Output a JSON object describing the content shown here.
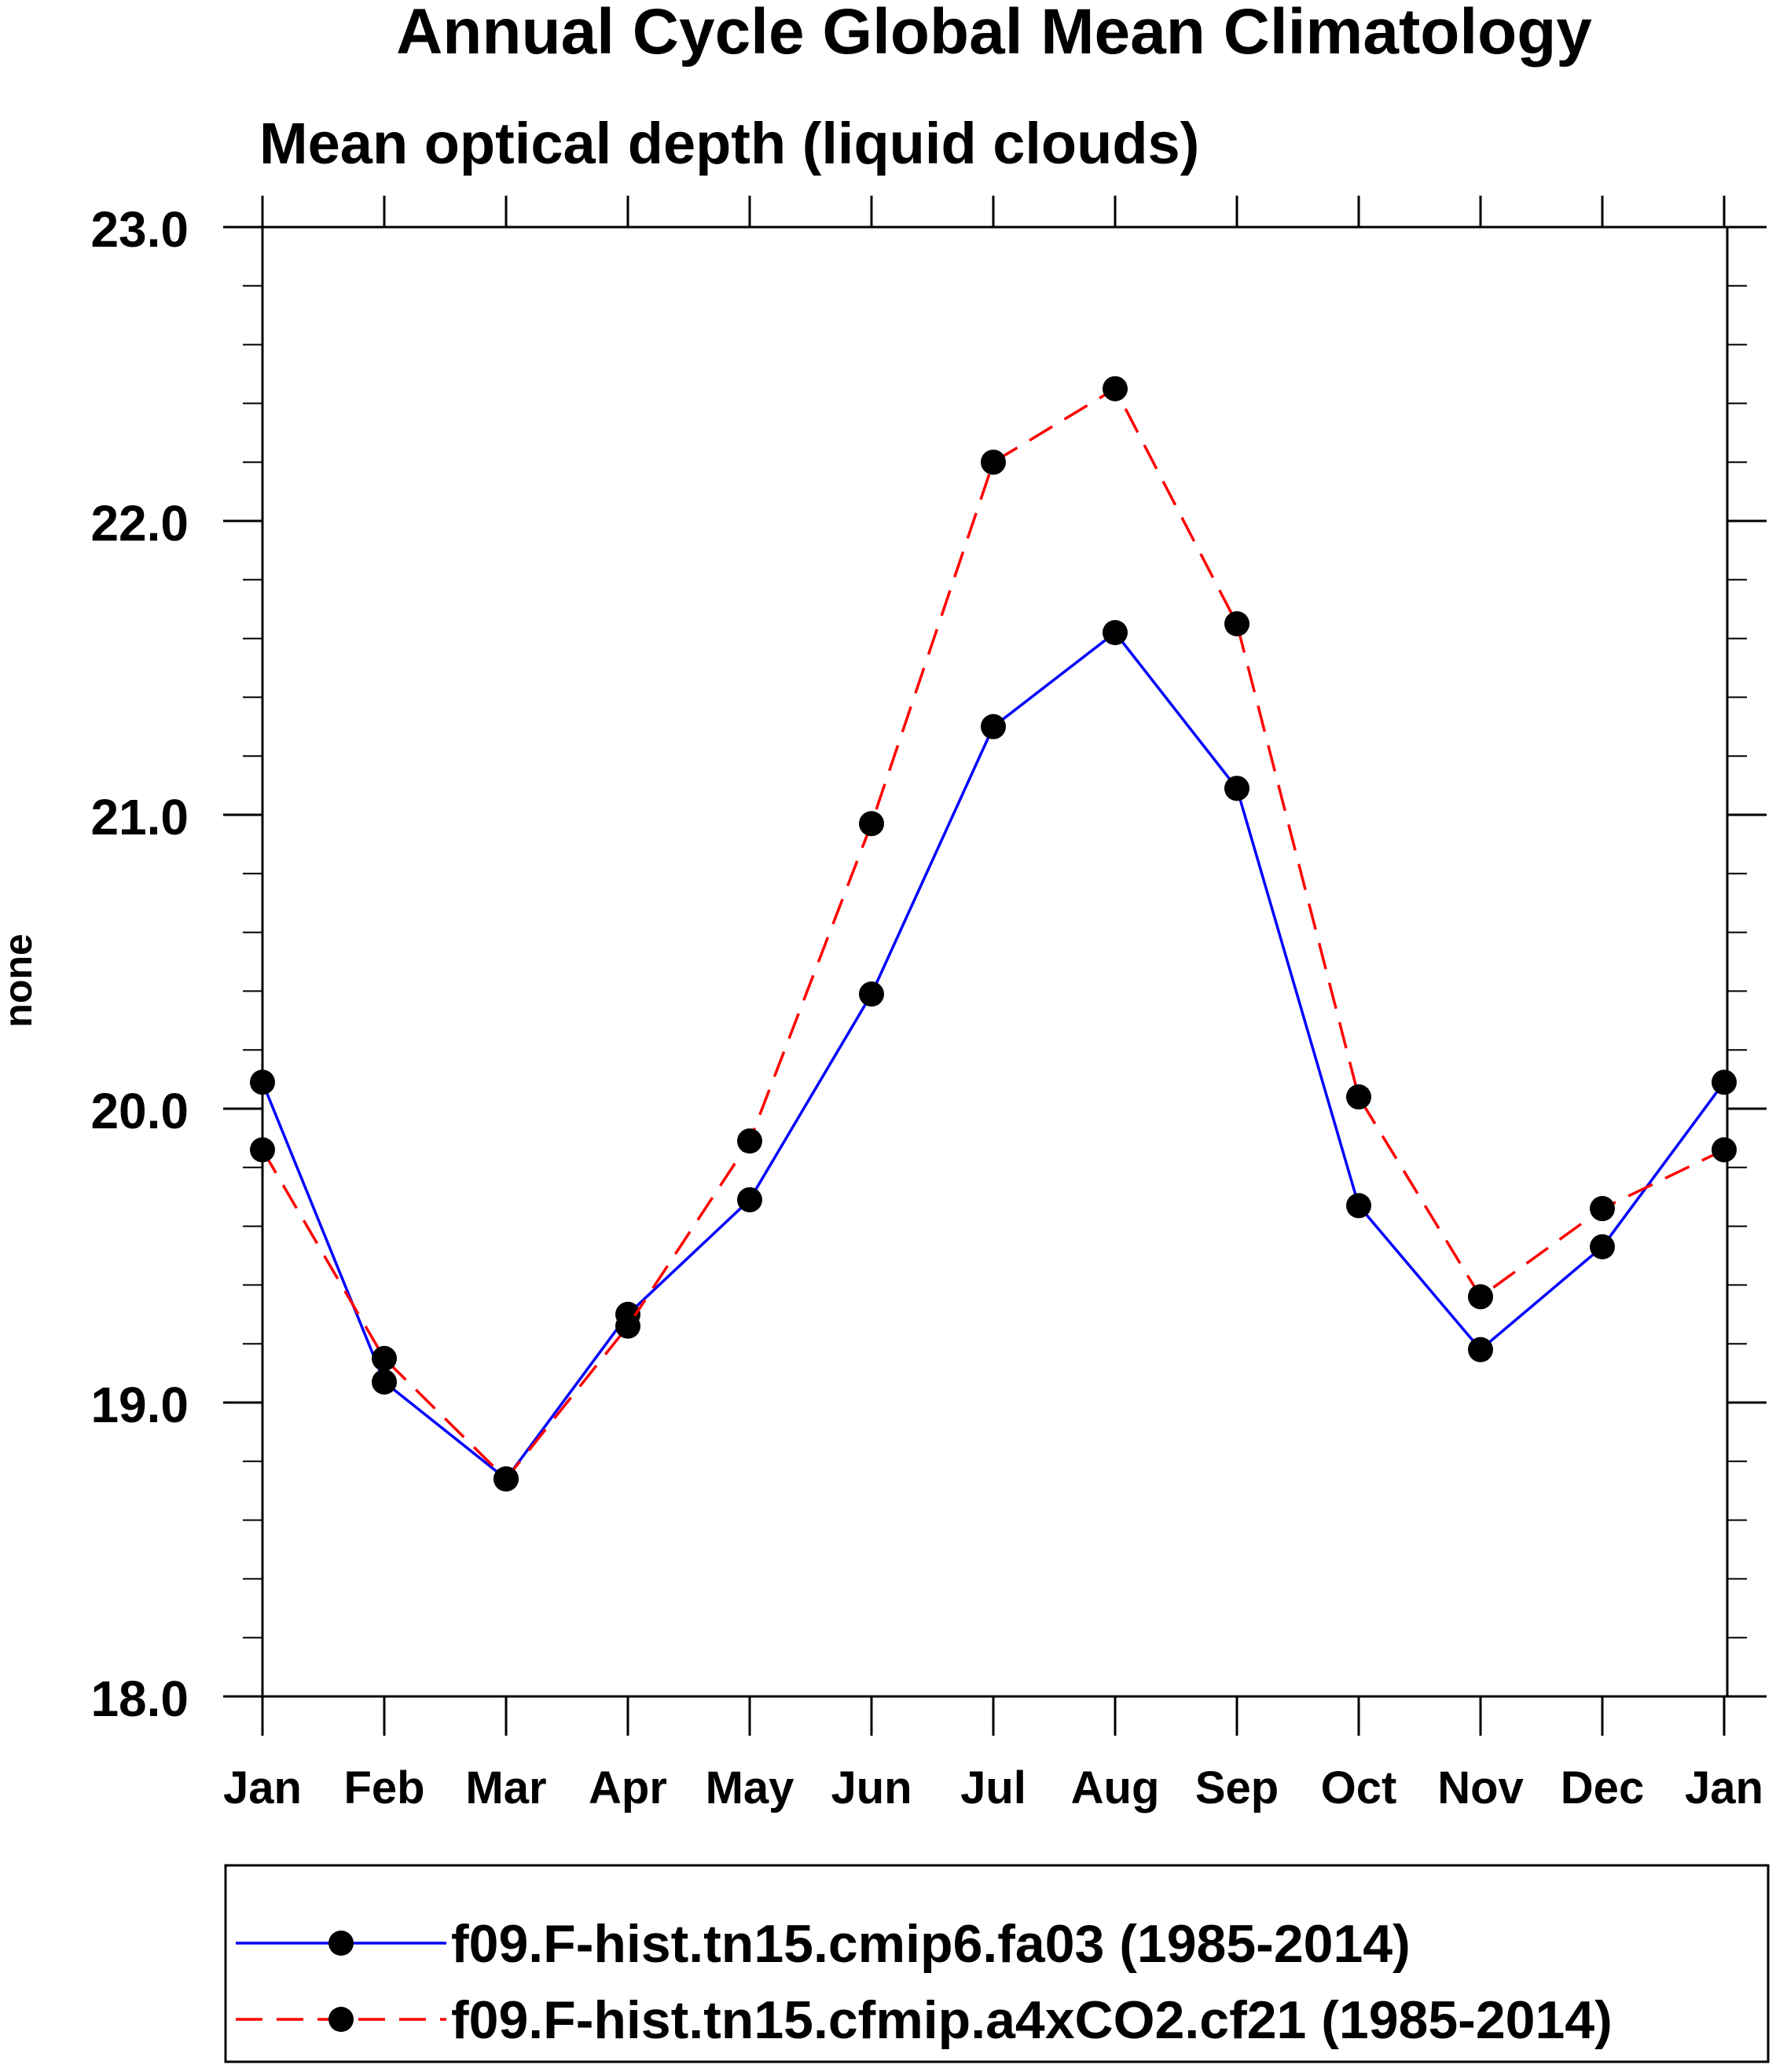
{
  "chart_data": {
    "type": "line",
    "title": "Annual Cycle Global Mean Climatology",
    "subtitle": "Mean optical depth (liquid clouds)",
    "xlabel": "",
    "ylabel": "none",
    "categories": [
      "Jan",
      "Feb",
      "Mar",
      "Apr",
      "May",
      "Jun",
      "Jul",
      "Aug",
      "Sep",
      "Oct",
      "Nov",
      "Dec",
      "Jan"
    ],
    "ylim": [
      18.0,
      23.0
    ],
    "yticks": [
      "18.0",
      "19.0",
      "20.0",
      "21.0",
      "22.0",
      "23.0"
    ],
    "grid": false,
    "legend_position": "bottom",
    "series": [
      {
        "name": "f09.F-hist.tn15.cmip6.fa03 (1985-2014)",
        "color": "#0000ff",
        "line_style": "solid",
        "marker": "filled-circle",
        "marker_color": "#000000",
        "values": [
          20.09,
          19.07,
          18.74,
          19.3,
          19.69,
          20.39,
          21.3,
          21.62,
          21.09,
          19.67,
          19.18,
          19.53,
          20.09
        ]
      },
      {
        "name": "f09.F-hist.tn15.cfmip.a4xCO2.cf21 (1985-2014)",
        "color": "#ff0000",
        "line_style": "dashed",
        "marker": "filled-circle",
        "marker_color": "#000000",
        "values": [
          19.86,
          19.15,
          18.74,
          19.26,
          19.89,
          20.97,
          22.2,
          22.45,
          21.65,
          20.04,
          19.36,
          19.66,
          19.86
        ]
      }
    ]
  }
}
